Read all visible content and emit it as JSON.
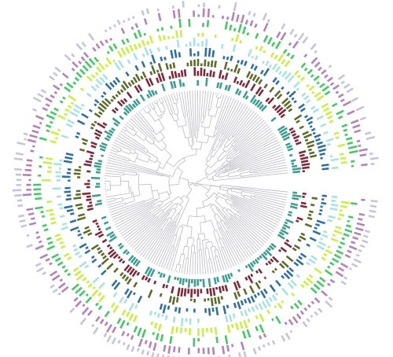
{
  "rings": [
    {
      "color": "#3f9e8f"
    },
    {
      "color": "#7a2c3c"
    },
    {
      "color": "#5d6b2c"
    },
    {
      "color": "#2f6fa3"
    },
    {
      "color": "#a9e2e0"
    },
    {
      "color": "#c9ef45"
    },
    {
      "color": "#45c766"
    },
    {
      "color": "#b384b3"
    },
    {
      "color": "#c4c4da"
    }
  ],
  "tree": {
    "color": "#b9b9c3"
  }
}
